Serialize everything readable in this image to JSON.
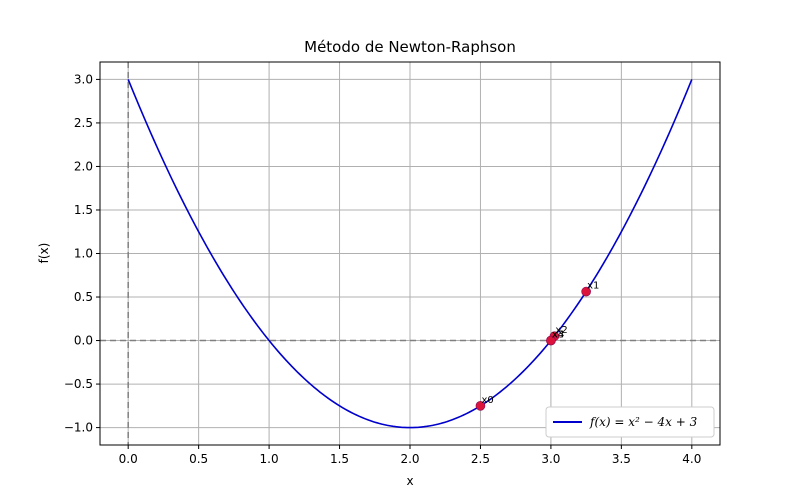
{
  "chart_data": {
    "type": "line",
    "title": "Método de Newton-Raphson",
    "xlabel": "x",
    "ylabel": "f(x)",
    "xlim": [
      -0.2,
      4.2
    ],
    "ylim": [
      -1.2,
      3.2
    ],
    "xticks": [
      0.0,
      0.5,
      1.0,
      1.5,
      2.0,
      2.5,
      3.0,
      3.5,
      4.0
    ],
    "xtick_labels": [
      "0.0",
      "0.5",
      "1.0",
      "1.5",
      "2.0",
      "2.5",
      "3.0",
      "3.5",
      "4.0"
    ],
    "yticks": [
      -1.0,
      -0.5,
      0.0,
      0.5,
      1.0,
      1.5,
      2.0,
      2.5,
      3.0
    ],
    "ytick_labels": [
      "−1.0",
      "−0.5",
      "0.0",
      "0.5",
      "1.0",
      "1.5",
      "2.0",
      "2.5",
      "3.0"
    ],
    "grid": true,
    "legend_position": "lower-right",
    "function": {
      "a": 1,
      "b": -4,
      "c": 3,
      "x_range": [
        0,
        4
      ]
    },
    "series": [
      {
        "name": "f(x) = x² − 4x + 3",
        "color": "#0000cc",
        "kind": "curve"
      }
    ],
    "reference_lines": {
      "x": 0,
      "y": 0,
      "color": "#808080",
      "style": "dashed"
    },
    "iterates": {
      "color": "#dc143c",
      "points": [
        {
          "label": "x0",
          "x": 2.5,
          "y": -0.75
        },
        {
          "label": "x1",
          "x": 3.25,
          "y": 0.5625
        },
        {
          "label": "x2",
          "x": 3.025,
          "y": 0.0506
        },
        {
          "label": "x3",
          "x": 3.0003,
          "y": 0.0006
        },
        {
          "label": "x4",
          "x": 3.0,
          "y": 0.0
        }
      ]
    }
  }
}
